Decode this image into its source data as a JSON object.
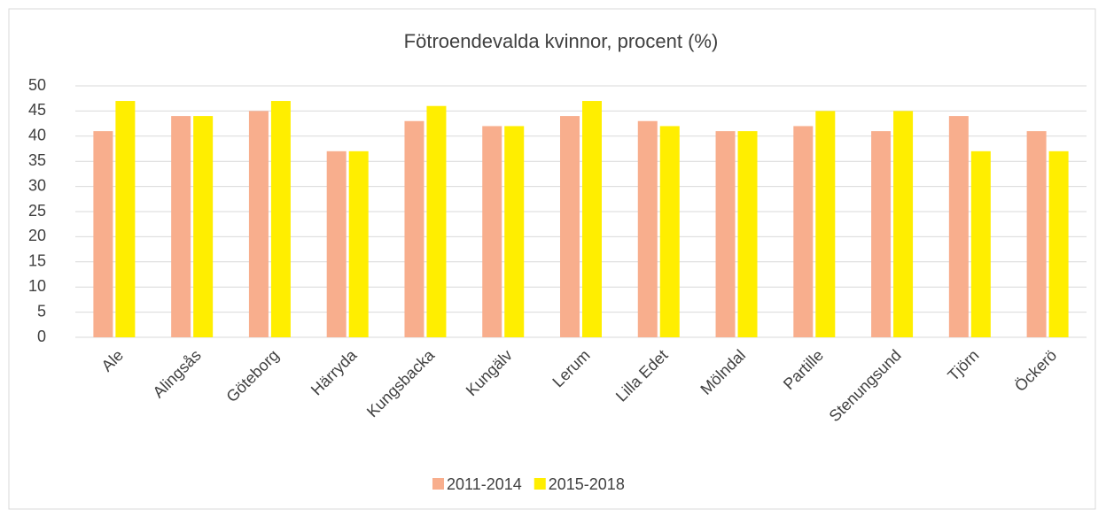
{
  "chart_data": {
    "type": "bar",
    "title": "Fötroendevalda kvinnor, procent (%)",
    "categories": [
      "Ale",
      "Alingsås",
      "Göteborg",
      "Härryda",
      "Kungsbacka",
      "Kungälv",
      "Lerum",
      "Lilla Edet",
      "Mölndal",
      "Partille",
      "Stenungsund",
      "Tjörn",
      "Öckerö"
    ],
    "series": [
      {
        "name": "2011-2014",
        "color": "#f8ae8d",
        "values": [
          41,
          44,
          45,
          37,
          43,
          42,
          44,
          43,
          41,
          42,
          41,
          44,
          41
        ]
      },
      {
        "name": "2015-2018",
        "color": "#ffee00",
        "values": [
          47,
          44,
          47,
          37,
          46,
          42,
          47,
          42,
          41,
          45,
          45,
          37,
          37
        ]
      }
    ],
    "ylim": [
      0,
      50
    ],
    "yticks": [
      0,
      5,
      10,
      15,
      20,
      25,
      30,
      35,
      40,
      45,
      50
    ],
    "grid": true,
    "legend": "bottom"
  }
}
